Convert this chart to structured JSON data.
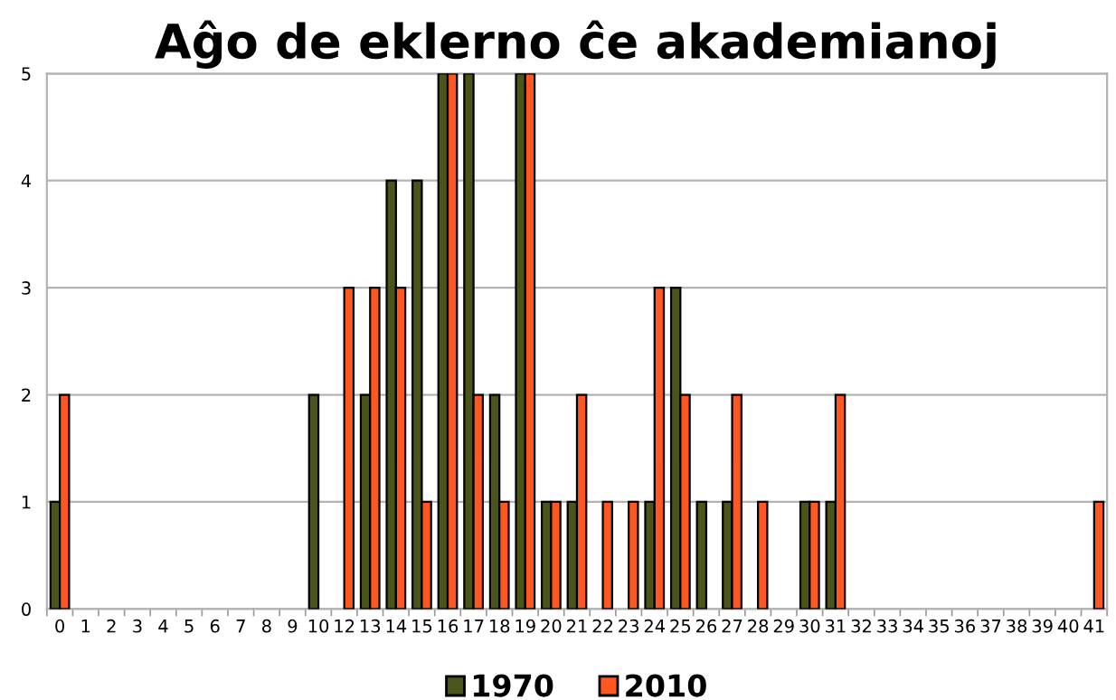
{
  "chart_data": {
    "type": "bar",
    "title": "Aĝo de eklerno ĉe akademianoj",
    "categories": [
      "0",
      "1",
      "2",
      "3",
      "4",
      "5",
      "6",
      "7",
      "8",
      "9",
      "10",
      "12",
      "13",
      "14",
      "15",
      "16",
      "17",
      "18",
      "19",
      "20",
      "21",
      "22",
      "23",
      "24",
      "25",
      "26",
      "27",
      "28",
      "29",
      "30",
      "31",
      "32",
      "33",
      "34",
      "35",
      "36",
      "37",
      "38",
      "39",
      "40",
      "41"
    ],
    "series": [
      {
        "name": "1970",
        "color": "#4a5519",
        "values": [
          1,
          null,
          null,
          null,
          null,
          null,
          null,
          null,
          null,
          null,
          2,
          null,
          2,
          4,
          4,
          5,
          5,
          2,
          5,
          1,
          1,
          null,
          null,
          1,
          3,
          1,
          1,
          null,
          null,
          1,
          1,
          null,
          null,
          null,
          null,
          null,
          null,
          null,
          null,
          null,
          null
        ]
      },
      {
        "name": "2010",
        "color": "#ff5722",
        "values": [
          2,
          null,
          null,
          null,
          null,
          null,
          null,
          null,
          null,
          null,
          null,
          3,
          3,
          3,
          1,
          5,
          2,
          1,
          5,
          1,
          2,
          1,
          1,
          3,
          2,
          null,
          2,
          1,
          null,
          1,
          2,
          null,
          null,
          null,
          null,
          null,
          null,
          null,
          null,
          null,
          1
        ]
      }
    ],
    "ylim": [
      0,
      5
    ],
    "yticks": [
      0,
      1,
      2,
      3,
      4,
      5
    ],
    "grid": "y",
    "legend": "bottom"
  }
}
